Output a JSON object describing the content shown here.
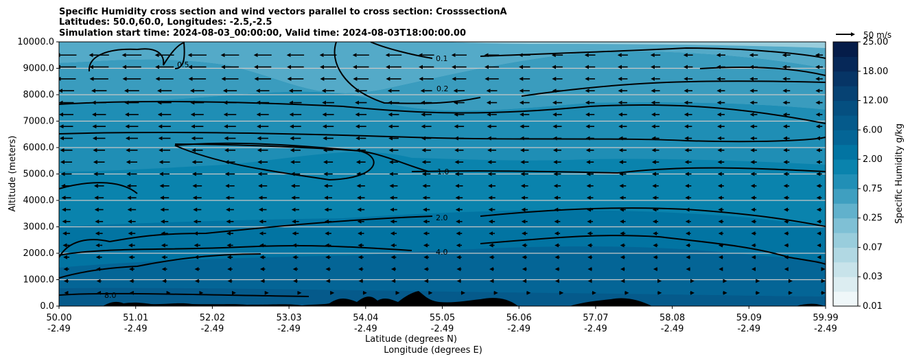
{
  "chart_data": {
    "type": "contour",
    "title_lines": [
      "Specific Humidity cross section and wind vectors parallel to cross section: CrosssectionA",
      "Latitudes: 50.0,60.0, Longitudes: -2.5,-2.5",
      "Simulation start time: 2024-08-03_00:00:00, Valid time: 2024-08-03T18:00:00.00"
    ],
    "ylabel": "Altitude (meters)",
    "xlabel_lines": [
      "Latitude (degrees N)",
      "Longitude (degrees E)"
    ],
    "ylim": [
      0,
      10000
    ],
    "xlim": [
      50.0,
      59.99
    ],
    "y_ticks": [
      {
        "value": 0,
        "label": "0.0"
      },
      {
        "value": 1000,
        "label": "1000.0"
      },
      {
        "value": 2000,
        "label": "2000.0"
      },
      {
        "value": 3000,
        "label": "3000.0"
      },
      {
        "value": 4000,
        "label": "4000.0"
      },
      {
        "value": 5000,
        "label": "5000.0"
      },
      {
        "value": 6000,
        "label": "6000.0"
      },
      {
        "value": 7000,
        "label": "7000.0"
      },
      {
        "value": 8000,
        "label": "8000.0"
      },
      {
        "value": 9000,
        "label": "9000.0"
      },
      {
        "value": 10000,
        "label": "10000.0"
      }
    ],
    "x_ticks": [
      {
        "lat": "50.00",
        "lon": "-2.49"
      },
      {
        "lat": "51.01",
        "lon": "-2.49"
      },
      {
        "lat": "52.02",
        "lon": "-2.49"
      },
      {
        "lat": "53.03",
        "lon": "-2.49"
      },
      {
        "lat": "54.04",
        "lon": "-2.49"
      },
      {
        "lat": "55.05",
        "lon": "-2.49"
      },
      {
        "lat": "56.06",
        "lon": "-2.49"
      },
      {
        "lat": "57.07",
        "lon": "-2.49"
      },
      {
        "lat": "58.08",
        "lon": "-2.49"
      },
      {
        "lat": "59.09",
        "lon": "-2.49"
      },
      {
        "lat": "59.99",
        "lon": "-2.49"
      }
    ],
    "grid": true,
    "colorbar": {
      "label": "Specific Humidity g/kg",
      "levels": [
        "0.01",
        "0.02",
        "0.03",
        "0.05",
        "0.07",
        "0.1",
        "0.25",
        "0.5",
        "0.75",
        "1.0",
        "2.00",
        "4.0",
        "6.00",
        "8.0",
        "12.00",
        "15.0",
        "18.00",
        "21.0",
        "25.00"
      ],
      "tick_labels": [
        "0.01",
        "0.03",
        "0.07",
        "0.25",
        "0.75",
        "2.00",
        "6.00",
        "12.00",
        "18.00",
        "25.00"
      ],
      "colors": [
        "#eff7f9",
        "#dcedf1",
        "#c8e3ea",
        "#b1d8e3",
        "#99cddc",
        "#7fc0d5",
        "#61b1cc",
        "#3f9fc0",
        "#218fb6",
        "#0a83ad",
        "#0274a2",
        "#046596",
        "#055a8b",
        "#054f80",
        "#064273",
        "#063566",
        "#062858",
        "#051c49"
      ]
    },
    "contour_labels": [
      {
        "text": "0.1",
        "value": 0.1
      },
      {
        "text": "0.2",
        "value": 0.2
      },
      {
        "text": "0.5",
        "value": 0.5
      },
      {
        "text": "1.0",
        "value": 1.0
      },
      {
        "text": "2.0",
        "value": 2.0
      },
      {
        "text": "4.0",
        "value": 4.0
      },
      {
        "text": "8.0",
        "value": 8.0
      }
    ],
    "wind_reference": {
      "label": "50 m/s",
      "speed": 50
    },
    "wind_direction": "southward (arrows point to decreasing latitude)"
  },
  "colors": {
    "contour_line": "#000000",
    "terrain": "#000000",
    "gridline": "#c8c8c8"
  }
}
